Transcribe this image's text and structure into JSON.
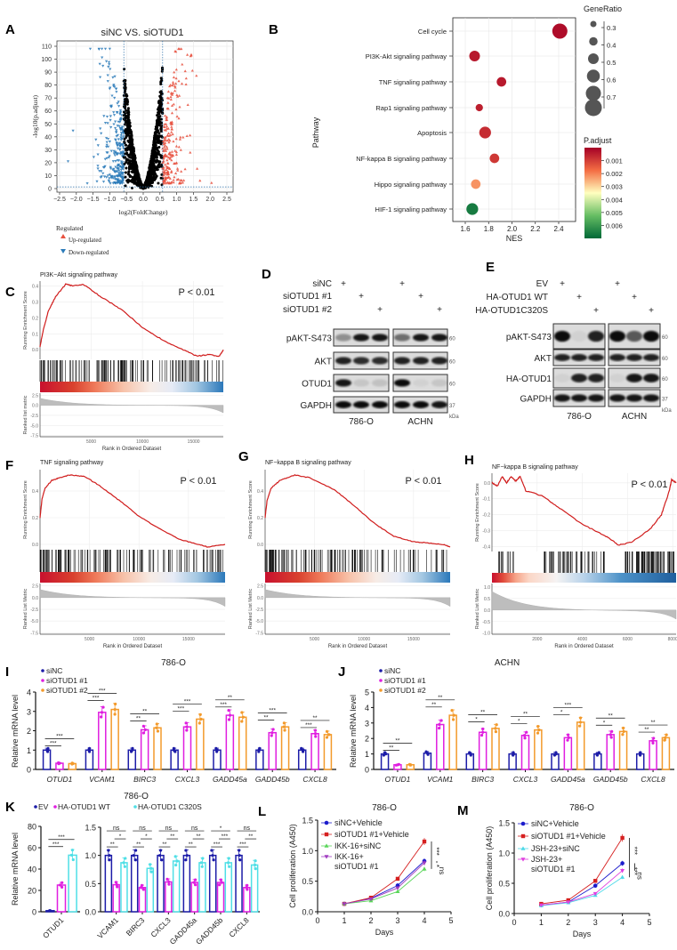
{
  "panel_labels": {
    "A": "A",
    "B": "B",
    "C": "C",
    "D": "D",
    "E": "E",
    "F": "F",
    "G": "G",
    "H": "H",
    "I": "I",
    "J": "J",
    "K": "K",
    "L": "L",
    "M": "M"
  },
  "chart_data": [
    {
      "type": "scatter",
      "title": "siNC VS. siOTUD1",
      "xlabel": "log2(FoldChange)",
      "ylabel": "-log10(p.adjust)",
      "x_ticks": [
        "−2.5",
        "−2.0",
        "−1.5",
        "−1.0",
        "−0.5",
        "0.0",
        "0.5",
        "1.0",
        "1.5",
        "2.0",
        "2.5"
      ],
      "y_ticks": [
        "0",
        "10",
        "20",
        "30",
        "40",
        "50",
        "60",
        "70",
        "80",
        "90",
        "100",
        "110"
      ],
      "xlim": [
        -2.6,
        2.7
      ],
      "ylim": [
        -3,
        114
      ],
      "fc_threshold": 0.58,
      "neg_log10_padj_threshold": 1.3,
      "grid": true,
      "legend_title": "Regulated",
      "legend": [
        {
          "label": "Up-regulated",
          "color": "#e8513f",
          "marker": "triangle-up"
        },
        {
          "label": "Down-regulated",
          "color": "#2b7bba",
          "marker": "triangle-down"
        }
      ],
      "not_significant_color": "#000000"
    },
    {
      "type": "scatter",
      "xlabel": "NES",
      "ylabel": "Pathway",
      "x_ticks": [
        "1.6",
        "1.8",
        "2.0",
        "2.2",
        "2.4"
      ],
      "xlim": [
        1.5,
        2.55
      ],
      "categories": [
        "Cell cycle",
        "PI3K-Akt signaling pathway",
        "TNF signaling pathway",
        "Rap1 signaling pathway",
        "Apoptosis",
        "NF-kappa B signaling pathway",
        "Hippo signaling pathway",
        "HIF-1 signaling pathway"
      ],
      "nes": [
        2.41,
        1.68,
        1.91,
        1.72,
        1.77,
        1.85,
        1.69,
        1.66
      ],
      "gene_ratio": [
        0.7,
        0.5,
        0.45,
        0.35,
        0.55,
        0.45,
        0.45,
        0.55
      ],
      "p_adjust": [
        0.0002,
        0.0004,
        0.0004,
        0.0005,
        0.0007,
        0.0009,
        0.0022,
        0.0066
      ],
      "size_legend_title": "GeneRatio",
      "size_legend": [
        "0.3",
        "0.4",
        "0.5",
        "0.6",
        "0.7"
      ],
      "color_legend_title": "P.adjust",
      "color_legend": [
        "0.001",
        "0.002",
        "0.003",
        "0.004",
        "0.005",
        "0.006"
      ],
      "colormap": [
        "#a50026",
        "#f46d43",
        "#ffffbf",
        "#66bd63",
        "#006837"
      ]
    },
    {
      "type": "line",
      "title": "PI3K−Akt signaling pathway",
      "annotation": "P < 0.01",
      "ylabel": "Running Enrichment Score",
      "rank_ylabel": "Ranked list metric",
      "xlabel": "Rank in Ordered Dataset",
      "x_ticks": [
        "5000",
        "10000",
        "15000"
      ],
      "xmax": 17900,
      "es_ticks": [
        "0.0",
        "0.1",
        "0.2",
        "0.3",
        "0.4"
      ],
      "es_ylim": [
        -0.06,
        0.43
      ],
      "rank_ticks": [
        "2.5",
        "0.0",
        "-2.5",
        "-5.0",
        "-7.5"
      ],
      "rank_ylim": [
        -7.8,
        3.0
      ],
      "x": [
        0,
        300,
        800,
        1500,
        2500,
        3200,
        4200,
        6000,
        8000,
        10000,
        12000,
        14000,
        15300,
        16500,
        17500,
        17900
      ],
      "y": [
        0.02,
        0.12,
        0.24,
        0.33,
        0.41,
        0.4,
        0.41,
        0.33,
        0.25,
        0.14,
        0.06,
        0.0,
        -0.04,
        -0.03,
        -0.04,
        0.0
      ]
    },
    {
      "type": "line",
      "title": "TNF signaling pathway",
      "annotation": "P < 0.01",
      "ylabel": "Running Enrichment Score",
      "rank_ylabel": "Ranked List Metric",
      "xlabel": "Rank in Ordered Dataset",
      "x_ticks": [
        "5000",
        "10000",
        "15000"
      ],
      "xmax": 18700,
      "es_ticks": [
        "0.0",
        "0.2",
        "0.4"
      ],
      "es_ylim": [
        -0.04,
        0.56
      ],
      "rank_ticks": [
        "2.5",
        "0.0",
        "-2.5",
        "-5.0",
        "-7.5"
      ],
      "rank_ylim": [
        -7.8,
        3.0
      ],
      "x": [
        0,
        200,
        500,
        1200,
        2000,
        3000,
        4500,
        6000,
        8000,
        10000,
        12000,
        14000,
        16000,
        17000,
        18700
      ],
      "y": [
        0.2,
        0.34,
        0.42,
        0.48,
        0.5,
        0.52,
        0.51,
        0.44,
        0.33,
        0.21,
        0.12,
        0.04,
        0.0,
        -0.02,
        0.0
      ]
    },
    {
      "type": "line",
      "title": "NF−kappa B signaling pathway",
      "annotation": "P < 0.01",
      "ylabel": "Running Enrichment Score",
      "rank_ylabel": "Ranked List Metric",
      "xlabel": "Rank in Ordered Dataset",
      "x_ticks": [
        "5000",
        "10000",
        "15000"
      ],
      "xmax": 18700,
      "es_ticks": [
        "0.0",
        "0.2",
        "0.4"
      ],
      "es_ylim": [
        -0.04,
        0.56
      ],
      "rank_ticks": [
        "2.5",
        "0.0",
        "-2.5",
        "-5.0",
        "-7.5"
      ],
      "rank_ylim": [
        -7.8,
        3.0
      ],
      "x": [
        0,
        200,
        600,
        1500,
        3000,
        4500,
        7000,
        9000,
        11000,
        13000,
        15000,
        16500,
        18000,
        18700
      ],
      "y": [
        0.2,
        0.33,
        0.42,
        0.48,
        0.52,
        0.5,
        0.41,
        0.29,
        0.16,
        0.06,
        0.02,
        0.01,
        0.0,
        -0.02
      ]
    },
    {
      "type": "line",
      "title": "NF−kappa B signaling pathway",
      "annotation": "P < 0.01",
      "ylabel": "Running Enrichment Score",
      "rank_ylabel": "Ranked List Metric",
      "xlabel": "Rank in Ordered Dataset",
      "x_ticks": [
        "2000",
        "4000",
        "6000",
        "8000"
      ],
      "xmax": 8150,
      "es_ticks": [
        "0.0",
        "-0.1",
        "-0.2",
        "-0.3",
        "-0.4"
      ],
      "es_ylim": [
        -0.43,
        0.06
      ],
      "rank_ticks": [
        "1.0",
        "0.5",
        "0.0",
        "-0.5",
        "-1.0"
      ],
      "rank_ylim": [
        -1.05,
        1.15
      ],
      "x": [
        0,
        250,
        450,
        650,
        850,
        1050,
        1250,
        1500,
        2200,
        3000,
        4000,
        5000,
        5600,
        6200,
        7000,
        7500,
        7850,
        7950,
        8150
      ],
      "y": [
        0.0,
        -0.02,
        0.04,
        0.0,
        0.04,
        0.01,
        0.04,
        -0.05,
        -0.08,
        -0.16,
        -0.26,
        -0.33,
        -0.39,
        -0.37,
        -0.29,
        -0.2,
        -0.05,
        0.02,
        0.0
      ]
    },
    {
      "type": "bar",
      "title": "786-O",
      "ylabel": "Relative mRNA level",
      "y_ticks": [
        "0",
        "1",
        "2",
        "3",
        "4"
      ],
      "ylim": [
        0,
        4
      ],
      "categories": [
        "OTUD1",
        "VCAM1",
        "BIRC3",
        "CXCL3",
        "GADD45a",
        "GADD45b",
        "CXCL8"
      ],
      "series": [
        {
          "name": "siNC",
          "color": "#1c1ca8",
          "values": [
            1.0,
            1.0,
            1.0,
            1.0,
            1.0,
            1.0,
            1.0
          ]
        },
        {
          "name": "siOTUD1 #1",
          "color": "#e01ee0",
          "values": [
            0.32,
            2.95,
            2.05,
            2.2,
            2.8,
            1.9,
            1.85
          ]
        },
        {
          "name": "siOTUD1 #2",
          "color": "#f39a2b",
          "values": [
            0.3,
            3.1,
            2.15,
            2.6,
            2.7,
            2.2,
            1.8
          ]
        }
      ],
      "significance": [
        {
          "pair": [
            0,
            1
          ],
          "labels": [
            "***",
            "***",
            "**",
            "***",
            "***",
            "**",
            "***"
          ]
        },
        {
          "pair": [
            0,
            2
          ],
          "labels": [
            "***",
            "***",
            "**",
            "***",
            "**",
            "***",
            "**"
          ]
        }
      ]
    },
    {
      "type": "bar",
      "title": "ACHN",
      "ylabel": "Relative mRNA level",
      "y_ticks": [
        "0",
        "1",
        "2",
        "3",
        "4",
        "5"
      ],
      "ylim": [
        0,
        5
      ],
      "categories": [
        "OTUD1",
        "VCAM1",
        "BIRC3",
        "CXCL3",
        "GADD45a",
        "GADD45b",
        "CXCL8"
      ],
      "series": [
        {
          "name": "siNC",
          "color": "#1c1ca8",
          "values": [
            1.0,
            1.05,
            1.0,
            1.0,
            1.0,
            1.0,
            1.0
          ]
        },
        {
          "name": "siOTUD1 #1",
          "color": "#e01ee0",
          "values": [
            0.3,
            2.9,
            2.4,
            2.2,
            2.05,
            2.25,
            1.85
          ]
        },
        {
          "name": "siOTUD1 #2",
          "color": "#f39a2b",
          "values": [
            0.3,
            3.5,
            2.65,
            2.55,
            3.05,
            2.45,
            2.05
          ]
        }
      ],
      "significance": [
        {
          "pair": [
            0,
            1
          ],
          "labels": [
            "**",
            "**",
            "*",
            "*",
            "*",
            "*",
            "**"
          ]
        },
        {
          "pair": [
            0,
            2
          ],
          "labels": [
            "**",
            "**",
            "**",
            "**",
            "***",
            "**",
            "**"
          ]
        }
      ]
    },
    {
      "type": "bar",
      "title": "786-O",
      "ylabel": "Relative mRNA level",
      "y_ticks": [
        "0",
        "20",
        "40",
        "60",
        "80"
      ],
      "ylim": [
        0,
        80
      ],
      "categories": [
        "OTUD1"
      ],
      "series": [
        {
          "name": "EV",
          "color": "#1c1ca8",
          "values": [
            1
          ]
        },
        {
          "name": "HA-OTUD1 WT",
          "color": "#e01ee0",
          "values": [
            25
          ]
        },
        {
          "name": "HA-OTUD1 C320S",
          "color": "#4fdfe6",
          "values": [
            53
          ]
        }
      ],
      "significance": [
        {
          "pair": [
            0,
            1
          ],
          "labels": [
            "***"
          ]
        },
        {
          "pair": [
            0,
            2
          ],
          "labels": [
            "***"
          ]
        }
      ]
    },
    {
      "type": "bar",
      "y_ticks": [
        "0.0",
        "0.5",
        "1.0",
        "1.5"
      ],
      "ylim": [
        0,
        1.5
      ],
      "categories": [
        "VCAM1",
        "BIRC3",
        "CXCL3",
        "GADD45a",
        "GADD45b",
        "CXCL8"
      ],
      "series": [
        {
          "name": "EV",
          "color": "#1c1ca8",
          "values": [
            1.0,
            1.0,
            1.0,
            1.0,
            1.0,
            1.0
          ]
        },
        {
          "name": "HA-OTUD1 WT",
          "color": "#e01ee0",
          "values": [
            0.48,
            0.43,
            0.53,
            0.52,
            0.52,
            0.43
          ]
        },
        {
          "name": "HA-OTUD1 C320S",
          "color": "#4fdfe6",
          "values": [
            0.87,
            0.77,
            0.9,
            0.87,
            0.87,
            0.83
          ]
        }
      ],
      "significance": [
        {
          "pair": [
            0,
            1
          ],
          "labels": [
            "**",
            "**",
            "**",
            "**",
            "***",
            "***"
          ]
        },
        {
          "pair": [
            1,
            2
          ],
          "labels": [
            "*",
            "*",
            "**",
            "**",
            "***",
            "**"
          ]
        },
        {
          "pair": [
            0,
            2
          ],
          "labels": [
            "ns",
            "ns",
            "ns",
            "ns",
            "*",
            "ns"
          ]
        }
      ]
    },
    {
      "type": "line",
      "title": "786-O",
      "xlabel": "Days",
      "ylabel": "Cell proliferation (A450)",
      "x_ticks": [
        "0",
        "1",
        "2",
        "3",
        "4",
        "5"
      ],
      "xlim": [
        0,
        5
      ],
      "y_ticks": [
        "0.0",
        "0.5",
        "1.0",
        "1.5"
      ],
      "ylim": [
        0,
        1.5
      ],
      "x": [
        1,
        2,
        3,
        4
      ],
      "series": [
        {
          "name": "siNC+Vehicle",
          "color": "#1c1ccc",
          "marker": "circle",
          "values": [
            0.13,
            0.22,
            0.43,
            0.83
          ]
        },
        {
          "name": "siOTUD1 #1+Vehicle",
          "color": "#d62020",
          "marker": "square",
          "values": [
            0.13,
            0.23,
            0.54,
            1.15
          ]
        },
        {
          "name": "IKK-16+siNC",
          "color": "#5ad65a",
          "marker": "triangle-up",
          "values": [
            0.13,
            0.18,
            0.33,
            0.7
          ]
        },
        {
          "name": "IKK-16+\nsiOTUD1 #1",
          "name_lines": [
            "IKK-16+",
            "siOTUD1 #1"
          ],
          "color": "#a03cc0",
          "marker": "triangle-down",
          "values": [
            0.13,
            0.21,
            0.39,
            0.8
          ]
        }
      ],
      "significance": [
        "***",
        "*",
        "ns"
      ]
    },
    {
      "type": "line",
      "title": "786-O",
      "xlabel": "Days",
      "ylabel": "Cell proliferation (A450)",
      "x_ticks": [
        "0",
        "1",
        "2",
        "3",
        "4",
        "5"
      ],
      "xlim": [
        0,
        5
      ],
      "y_ticks": [
        "0.0",
        "0.5",
        "1.0",
        "1.5"
      ],
      "ylim": [
        0,
        1.5
      ],
      "x": [
        1,
        2,
        3,
        4
      ],
      "series": [
        {
          "name": "siNC+Vehicle",
          "color": "#1c1ccc",
          "marker": "circle",
          "values": [
            0.14,
            0.19,
            0.46,
            0.83
          ]
        },
        {
          "name": "siOTUD1 #1+Vehicle",
          "color": "#d62020",
          "marker": "square",
          "values": [
            0.16,
            0.22,
            0.54,
            1.25
          ]
        },
        {
          "name": "JSH-23+siNC",
          "color": "#4dd9e8",
          "marker": "triangle-up",
          "values": [
            0.13,
            0.18,
            0.3,
            0.6
          ]
        },
        {
          "name": "JSH-23+\nsiOTUD1 #1",
          "name_lines": [
            "JSH-23+",
            "siOTUD1 #1"
          ],
          "color": "#e040e0",
          "marker": "triangle-down",
          "values": [
            0.14,
            0.19,
            0.33,
            0.71
          ]
        }
      ],
      "significance": [
        "***",
        "***",
        "ns"
      ]
    }
  ],
  "blots": {
    "D": {
      "conditions": [
        {
          "label": "siNC",
          "lanes": [
            0
          ]
        },
        {
          "label": "siOTUD1 #1",
          "lanes": [
            1
          ]
        },
        {
          "label": "siOTUD1 #2",
          "lanes": [
            2
          ]
        }
      ],
      "plus": "+",
      "cell_lines": [
        "786-O",
        "ACHN"
      ],
      "rows": [
        {
          "label": "pAKT-S473",
          "marker": "60",
          "intensity": [
            [
              0.35,
              0.9,
              0.9
            ],
            [
              0.5,
              0.9,
              0.9
            ]
          ]
        },
        {
          "label": "AKT",
          "marker": "60",
          "intensity": [
            [
              0.85,
              0.8,
              0.8
            ],
            [
              0.85,
              0.85,
              0.85
            ]
          ]
        },
        {
          "label": "OTUD1",
          "marker": "60",
          "intensity": [
            [
              0.9,
              0.1,
              0.12
            ],
            [
              0.95,
              0.05,
              0.1
            ]
          ]
        },
        {
          "label": "GAPDH",
          "marker": "37",
          "intensity": [
            [
              0.95,
              0.95,
              0.95
            ],
            [
              0.95,
              0.95,
              0.9
            ]
          ]
        }
      ],
      "unit": "kDa"
    },
    "E": {
      "conditions": [
        {
          "label": "EV",
          "lanes": [
            0
          ]
        },
        {
          "label": "HA-OTUD1 WT",
          "lanes": [
            1
          ]
        },
        {
          "label": "HA-OTUD1C320S",
          "lanes": [
            2
          ]
        }
      ],
      "plus": "+",
      "cell_lines": [
        "786-O",
        "ACHN"
      ],
      "rows": [
        {
          "label": "pAKT-S473",
          "marker": "60",
          "intensity": [
            [
              0.95,
              0.05,
              0.85
            ],
            [
              0.95,
              0.6,
              0.95
            ]
          ]
        },
        {
          "label": "AKT",
          "marker": "60",
          "intensity": [
            [
              0.85,
              0.85,
              0.85
            ],
            [
              0.85,
              0.85,
              0.85
            ]
          ]
        },
        {
          "label": "HA-OTUD1",
          "marker": "60",
          "intensity": [
            [
              0.05,
              0.85,
              0.85
            ],
            [
              0.05,
              0.9,
              0.9
            ]
          ]
        },
        {
          "label": "GAPDH",
          "marker": "37",
          "intensity": [
            [
              0.9,
              0.9,
              0.9
            ],
            [
              0.9,
              0.9,
              0.9
            ]
          ]
        }
      ],
      "unit": "kDa"
    }
  }
}
